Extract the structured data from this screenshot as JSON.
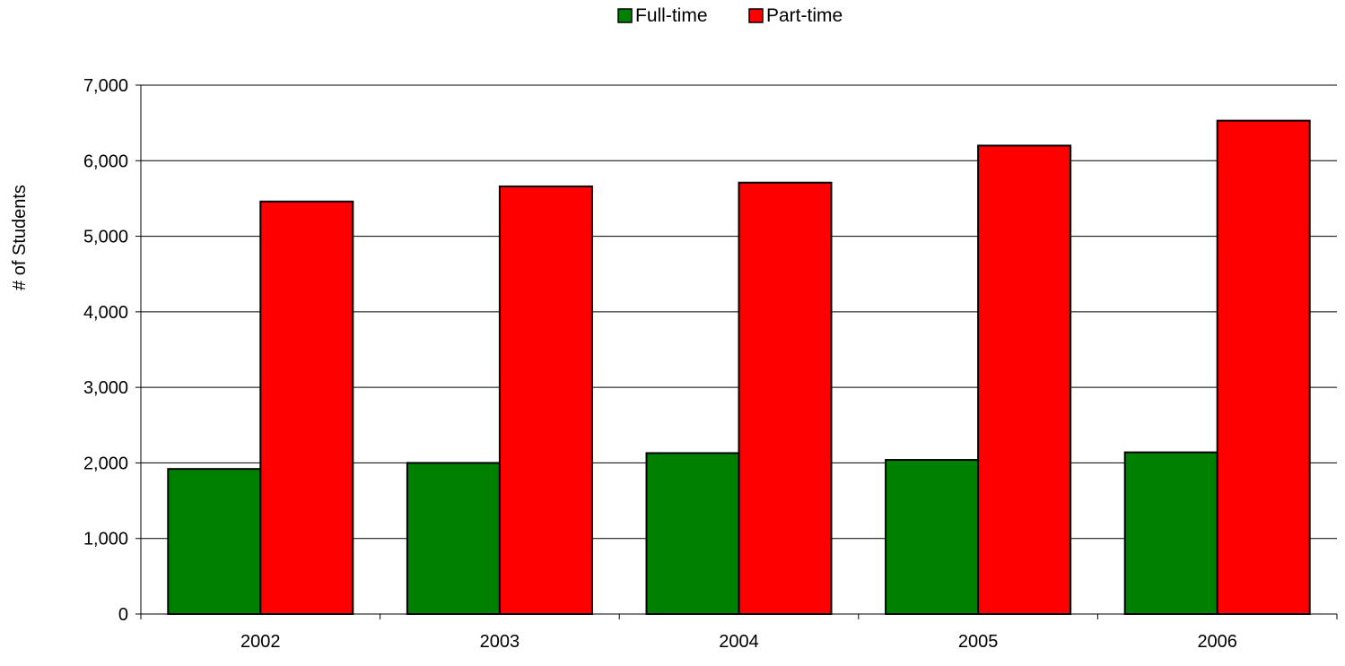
{
  "chart_data": {
    "type": "bar",
    "title": "",
    "xlabel": "",
    "ylabel": "# of Students",
    "categories": [
      "2002",
      "2003",
      "2004",
      "2005",
      "2006"
    ],
    "series": [
      {
        "name": "Full-time",
        "values": [
          1920,
          2000,
          2130,
          2040,
          2140
        ]
      },
      {
        "name": "Part-time",
        "values": [
          5460,
          5660,
          5710,
          6200,
          6530
        ]
      }
    ],
    "ylim": [
      0,
      7000
    ],
    "yticks": [
      0,
      1000,
      2000,
      3000,
      4000,
      5000,
      6000,
      7000
    ],
    "ytick_labels": [
      "0",
      "1,000",
      "2,000",
      "3,000",
      "4,000",
      "5,000",
      "6,000",
      "7,000"
    ],
    "grid": true,
    "legend_position": "top-center"
  },
  "colors": {
    "full_time": "#008000",
    "part_time": "#ff0000",
    "axis": "#000000",
    "grid": "#000000"
  }
}
